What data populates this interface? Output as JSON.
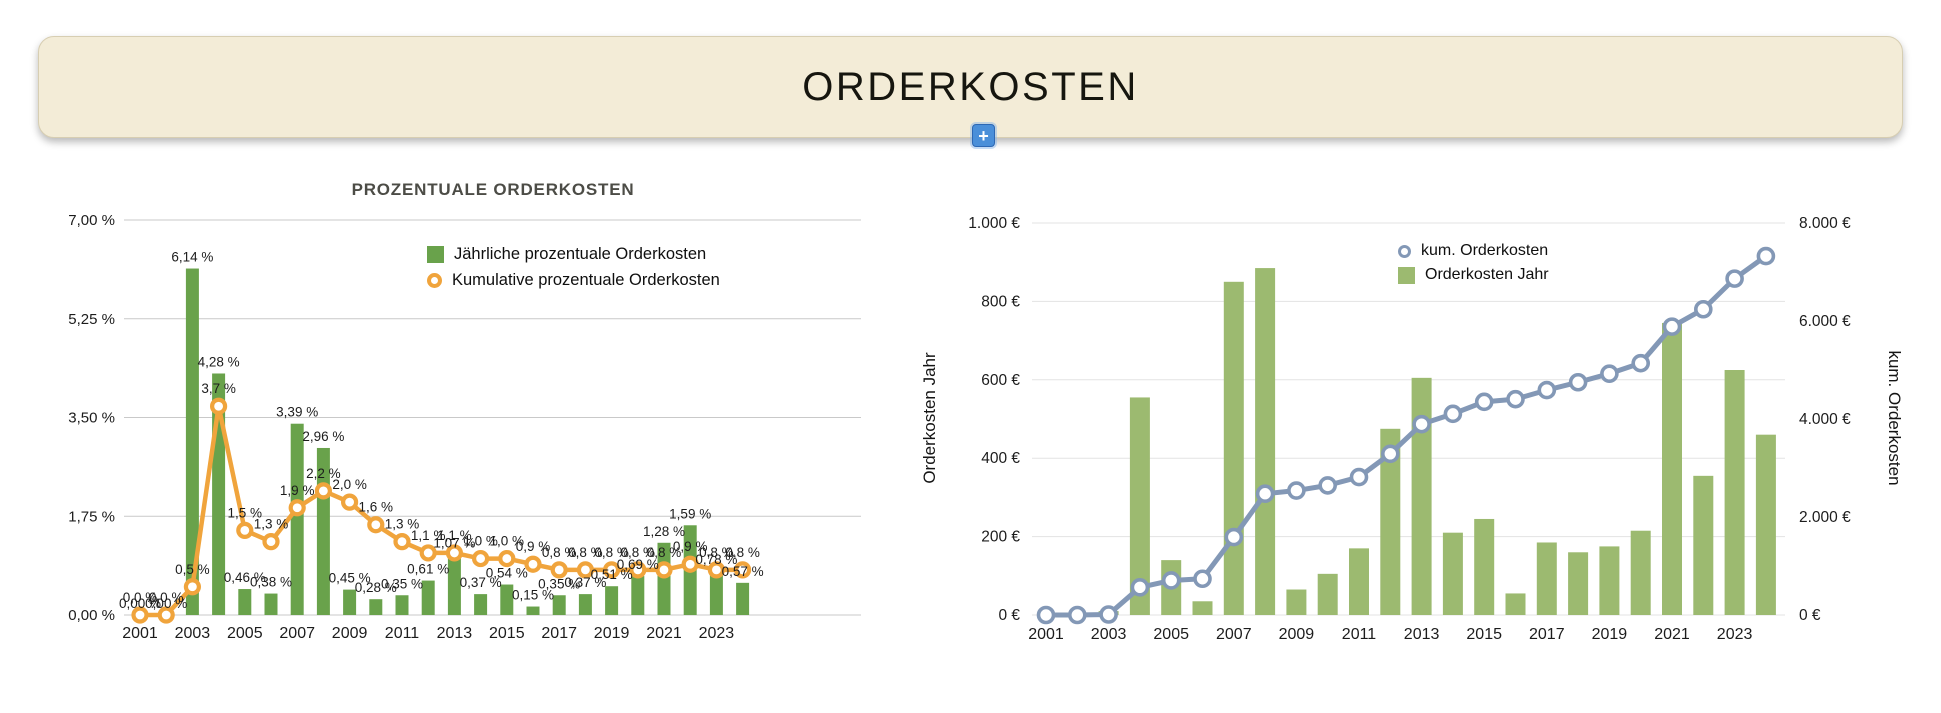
{
  "header": {
    "title": "ORDERKOSTEN",
    "add_button_label": "+",
    "banner_color": "#f3ecd7",
    "add_button_color": "#4a8fd9"
  },
  "chart_data": [
    {
      "type": "bar+line",
      "title": "PROZENTUALE ORDERKOSTEN",
      "years": [
        2001,
        2002,
        2003,
        2004,
        2005,
        2006,
        2007,
        2008,
        2009,
        2010,
        2011,
        2012,
        2013,
        2014,
        2015,
        2016,
        2017,
        2018,
        2019,
        2020,
        2021,
        2022,
        2023,
        2024
      ],
      "x_tick_years": [
        2001,
        2003,
        2005,
        2007,
        2009,
        2011,
        2013,
        2015,
        2017,
        2019,
        2021,
        2023
      ],
      "ylim": [
        0,
        7
      ],
      "y_tick_values": [
        0,
        1.75,
        3.5,
        5.25,
        7
      ],
      "y_tick_labels": [
        "0,00 %",
        "1,75 %",
        "3,50 %",
        "5,25 %",
        "7,00 %"
      ],
      "grid": true,
      "legend_position": "top-right",
      "bar": {
        "name": "Jährliche prozentuale Orderkosten",
        "color": "#69a24b",
        "values": [
          0.0,
          0.0,
          6.14,
          4.28,
          0.46,
          0.38,
          3.39,
          2.96,
          0.45,
          0.28,
          0.35,
          0.61,
          1.07,
          0.37,
          0.54,
          0.15,
          0.35,
          0.37,
          0.51,
          0.69,
          1.28,
          1.59,
          0.78,
          0.57
        ],
        "labels": [
          "0,00 %",
          "0,00 %",
          "6,14 %",
          "4,28 %",
          "0,46 %",
          "0,38 %",
          "3,39 %",
          "2,96 %",
          "0,45 %",
          "0,28 %",
          "0,35 %",
          "0,61 %",
          "1,07 %",
          "0,37 %",
          "0,54 %",
          "0,15 %",
          "0,35 %",
          "0,37 %",
          "0,51 %",
          "0,69 %",
          "1,28 %",
          "1,59 %",
          "0,78 %",
          "0,57 %"
        ]
      },
      "line": {
        "name": "Kumulative prozentuale Orderkosten",
        "color": "#f0a43c",
        "values": [
          0.0,
          0.0,
          0.5,
          3.7,
          1.5,
          1.3,
          1.9,
          2.2,
          2.0,
          1.6,
          1.3,
          1.1,
          1.1,
          1.0,
          1.0,
          0.9,
          0.8,
          0.8,
          0.8,
          0.8,
          0.8,
          0.9,
          0.8,
          0.8
        ],
        "labels": [
          "0,0 %",
          "0,0 %",
          "0,5 %",
          "3,7 %",
          "1,5 %",
          "1,3 %",
          "1,9 %",
          "2,2 %",
          "2,0 %",
          "1,6 %",
          "1,3 %",
          "1,1 %",
          "1,1 %",
          "1,0 %",
          "1,0 %",
          "0,9 %",
          "0,8 %",
          "0,8 %",
          "0,8 %",
          "0,8 %",
          "0,8 %",
          "0,9 %",
          "0,8 %",
          "0,8 %"
        ]
      }
    },
    {
      "type": "bar+line",
      "years": [
        2001,
        2002,
        2003,
        2004,
        2005,
        2006,
        2007,
        2008,
        2009,
        2010,
        2011,
        2012,
        2013,
        2014,
        2015,
        2016,
        2017,
        2018,
        2019,
        2020,
        2021,
        2022,
        2023,
        2024
      ],
      "x_tick_years": [
        2001,
        2003,
        2005,
        2007,
        2009,
        2011,
        2013,
        2015,
        2017,
        2019,
        2021,
        2023
      ],
      "grid": true,
      "legend_position": "top-center",
      "left_axis": {
        "title": "Orderkosten Jahr",
        "lim": [
          0,
          1000
        ],
        "tick_values": [
          0,
          200,
          400,
          600,
          800,
          1000
        ],
        "tick_labels": [
          "0 €",
          "200 €",
          "400 €",
          "600 €",
          "800 €",
          "1.000 €"
        ]
      },
      "right_axis": {
        "title": "kum. Orderkosten",
        "lim": [
          0,
          8000
        ],
        "tick_values": [
          0,
          2000,
          4000,
          6000,
          8000
        ],
        "tick_labels": [
          "0 €",
          "2.000 €",
          "4.000 €",
          "6.000 €",
          "8.000 €"
        ]
      },
      "bar": {
        "name": "Orderkosten Jahr",
        "color": "#9cba70",
        "values": [
          0,
          0,
          10,
          555,
          140,
          35,
          850,
          885,
          65,
          105,
          170,
          475,
          605,
          210,
          245,
          55,
          185,
          160,
          175,
          215,
          745,
          355,
          625,
          460
        ]
      },
      "line": {
        "name": "kum. Orderkosten",
        "color": "#8398b6",
        "values": [
          0,
          0,
          10,
          565,
          705,
          740,
          1590,
          2475,
          2540,
          2645,
          2815,
          3290,
          3895,
          4105,
          4350,
          4405,
          4590,
          4750,
          4925,
          5140,
          5885,
          6240,
          6865,
          7325
        ]
      }
    }
  ]
}
